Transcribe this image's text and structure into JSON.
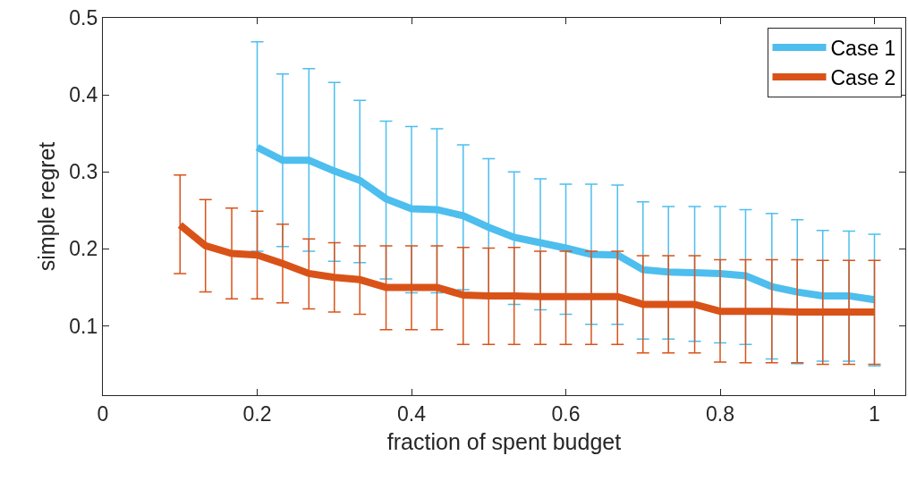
{
  "chart_data": {
    "type": "line",
    "xlabel": "fraction of spent budget",
    "ylabel": "simple regret",
    "xlim": [
      0,
      1.04
    ],
    "ylim": [
      0.01,
      0.5
    ],
    "xticks": [
      0,
      0.2,
      0.4,
      0.6,
      0.8,
      1
    ],
    "yticks": [
      0.1,
      0.2,
      0.3,
      0.4,
      0.5
    ],
    "legend": "top right",
    "marker": "none",
    "line_style": "solid",
    "series": [
      {
        "name": "Case 1",
        "color": "#4dbeee",
        "x": [
          0.2,
          0.233,
          0.267,
          0.3,
          0.333,
          0.367,
          0.4,
          0.433,
          0.467,
          0.5,
          0.533,
          0.567,
          0.6,
          0.633,
          0.667,
          0.7,
          0.733,
          0.767,
          0.8,
          0.833,
          0.867,
          0.9,
          0.933,
          0.967,
          1.0
        ],
        "values": [
          0.332,
          0.315,
          0.315,
          0.301,
          0.289,
          0.265,
          0.252,
          0.251,
          0.243,
          0.228,
          0.215,
          0.208,
          0.201,
          0.193,
          0.192,
          0.173,
          0.17,
          0.169,
          0.168,
          0.165,
          0.151,
          0.144,
          0.139,
          0.139,
          0.134
        ],
        "errors": [
          [
            0.197,
            0.469
          ],
          [
            0.203,
            0.427
          ],
          [
            0.197,
            0.434
          ],
          [
            0.184,
            0.416
          ],
          [
            0.182,
            0.393
          ],
          [
            0.161,
            0.366
          ],
          [
            0.143,
            0.359
          ],
          [
            0.143,
            0.356
          ],
          [
            0.147,
            0.335
          ],
          [
            0.138,
            0.317
          ],
          [
            0.128,
            0.3
          ],
          [
            0.121,
            0.291
          ],
          [
            0.115,
            0.284
          ],
          [
            0.102,
            0.284
          ],
          [
            0.102,
            0.283
          ],
          [
            0.083,
            0.261
          ],
          [
            0.083,
            0.255
          ],
          [
            0.08,
            0.255
          ],
          [
            0.078,
            0.255
          ],
          [
            0.076,
            0.251
          ],
          [
            0.057,
            0.246
          ],
          [
            0.051,
            0.238
          ],
          [
            0.054,
            0.224
          ],
          [
            0.054,
            0.223
          ],
          [
            0.048,
            0.219
          ]
        ]
      },
      {
        "name": "Case 2",
        "color": "#d95319",
        "x": [
          0.1,
          0.133,
          0.167,
          0.2,
          0.233,
          0.267,
          0.3,
          0.333,
          0.367,
          0.4,
          0.433,
          0.467,
          0.5,
          0.533,
          0.567,
          0.6,
          0.633,
          0.667,
          0.7,
          0.733,
          0.767,
          0.8,
          0.833,
          0.867,
          0.9,
          0.933,
          0.967,
          1.0
        ],
        "values": [
          0.231,
          0.204,
          0.194,
          0.192,
          0.181,
          0.168,
          0.163,
          0.16,
          0.15,
          0.15,
          0.15,
          0.14,
          0.139,
          0.139,
          0.138,
          0.138,
          0.138,
          0.138,
          0.128,
          0.128,
          0.128,
          0.119,
          0.119,
          0.119,
          0.118,
          0.118,
          0.118,
          0.118
        ],
        "errors": [
          [
            0.168,
            0.296
          ],
          [
            0.144,
            0.264
          ],
          [
            0.135,
            0.253
          ],
          [
            0.135,
            0.249
          ],
          [
            0.13,
            0.232
          ],
          [
            0.122,
            0.213
          ],
          [
            0.118,
            0.208
          ],
          [
            0.115,
            0.204
          ],
          [
            0.095,
            0.204
          ],
          [
            0.095,
            0.204
          ],
          [
            0.095,
            0.204
          ],
          [
            0.076,
            0.202
          ],
          [
            0.076,
            0.201
          ],
          [
            0.076,
            0.202
          ],
          [
            0.076,
            0.197
          ],
          [
            0.076,
            0.197
          ],
          [
            0.076,
            0.197
          ],
          [
            0.076,
            0.197
          ],
          [
            0.065,
            0.191
          ],
          [
            0.065,
            0.191
          ],
          [
            0.065,
            0.191
          ],
          [
            0.053,
            0.186
          ],
          [
            0.052,
            0.186
          ],
          [
            0.052,
            0.186
          ],
          [
            0.052,
            0.186
          ],
          [
            0.05,
            0.185
          ],
          [
            0.05,
            0.185
          ],
          [
            0.05,
            0.185
          ]
        ]
      }
    ]
  }
}
